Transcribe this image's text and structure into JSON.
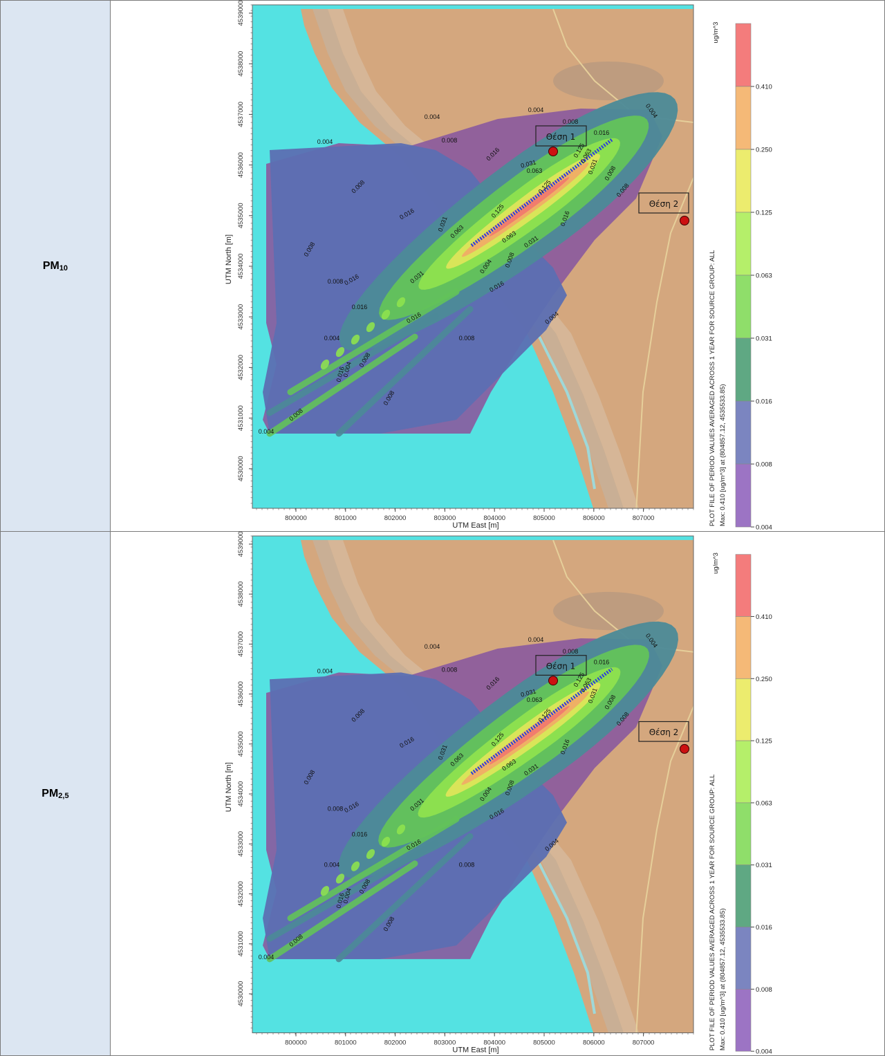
{
  "rows": [
    {
      "pollutant_main": "PM",
      "pollutant_sub": "10",
      "figure": {
        "y_axis_label": "UTM North [m]",
        "x_axis_label": "UTM East [m]",
        "x_ticks": [
          "800000",
          "801000",
          "802000",
          "803000",
          "804000",
          "805000",
          "806000",
          "807000"
        ],
        "y_ticks": [
          "4539000",
          "4538000",
          "4537000",
          "4536000",
          "4535000",
          "4534000",
          "4533000",
          "4532000",
          "4531000",
          "4530000"
        ],
        "points": [
          "Θέση 1",
          "Θέση 2"
        ],
        "legend_unit": "ug/m^3",
        "legend_levels": [
          "0.410",
          "0.250",
          "0.125",
          "0.063",
          "0.031",
          "0.016",
          "0.008",
          "0.004"
        ],
        "caption_line1": "PLOT FILE OF PERIOD VALUES AVERAGED ACROSS 1 YEAR FOR SOURCE GROUP: ALL",
        "caption_line2": "Max:  0.410  [ug/m^3]  at  (804857.12, 4535533.85)"
      }
    },
    {
      "pollutant_main": "PM",
      "pollutant_sub": "2,5",
      "figure": {
        "y_axis_label": "UTM North [m]",
        "x_axis_label": "UTM East [m]",
        "x_ticks": [
          "800000",
          "801000",
          "802000",
          "803000",
          "804000",
          "805000",
          "806000",
          "807000"
        ],
        "y_ticks": [
          "4539000",
          "4538000",
          "4537000",
          "4536000",
          "4535000",
          "4534000",
          "4533000",
          "4532000",
          "4531000",
          "4530000"
        ],
        "points": [
          "Θέση 1",
          "Θέση 2"
        ],
        "legend_unit": "ug/m^3",
        "legend_levels": [
          "0.410",
          "0.250",
          "0.125",
          "0.063",
          "0.031",
          "0.016",
          "0.008",
          "0.004"
        ],
        "caption_line1": "PLOT FILE OF PERIOD VALUES AVERAGED ACROSS 1 YEAR FOR SOURCE GROUP: ALL",
        "caption_line2": "Max:  0.410  [ug/m^3]  at  (804857.12, 4535533.85)"
      }
    }
  ],
  "contour_labels": [
    "0.004",
    "0.008",
    "0.016",
    "0.031",
    "0.063",
    "0.125"
  ],
  "colors": {
    "sea": "#54e2e2",
    "land": "#d4a77e",
    "band_0_004": "#8a5a9e",
    "band_0_008": "#5c6fb2",
    "band_0_016": "#4c8a98",
    "band_0_031": "#63c35a",
    "band_0_063": "#8ee24e",
    "band_0_125": "#dde55a",
    "band_0_250": "#f0ad66",
    "band_0_410": "#f07a6e",
    "legend_0_004": "#9c74c4",
    "legend_0_008": "#7b85c0",
    "legend_0_016": "#5fa883",
    "legend_0_031": "#8fde6a",
    "legend_0_063": "#b5ef6a",
    "legend_0_125": "#ecec6e",
    "legend_0_250": "#f5b977",
    "legend_0_410": "#f47c7c",
    "source_line": "#2d3fd8",
    "point_fill": "#cc1111",
    "label_cell": "#dce6f2"
  }
}
